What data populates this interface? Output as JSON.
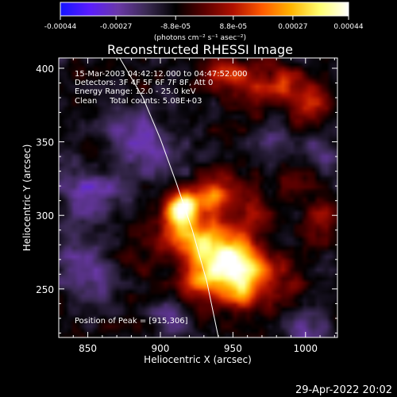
{
  "colorbar": {
    "min": -0.00044,
    "max": 0.00044,
    "tick_labels": [
      "-0.00044",
      "-0.00027",
      "-8.8e-05",
      "8.8e-05",
      "0.00027",
      "0.00044"
    ],
    "tick_values": [
      -0.00044,
      -0.00027,
      -8.8e-05,
      8.8e-05,
      0.00027,
      0.00044
    ],
    "unit_label": "(photons cm⁻² s⁻¹ asec⁻²)",
    "colors": [
      "#1414ff",
      "#5a1cff",
      "#6a38a8",
      "#3a2a52",
      "#000000",
      "#5a0000",
      "#b01000",
      "#ff5a00",
      "#ffb400",
      "#ffff70",
      "#ffffff"
    ]
  },
  "chart_data": {
    "type": "heatmap",
    "title": "Reconstructed RHESSI Image",
    "xlabel": "Heliocentric X (arcsec)",
    "ylabel": "Heliocentric Y (arcsec)",
    "xlim": [
      830,
      1022
    ],
    "ylim": [
      217,
      407
    ],
    "xticks": [
      850,
      900,
      950,
      1000
    ],
    "yticks": [
      250,
      300,
      350,
      400
    ],
    "annotations": [
      "15-Mar-2003 04:42:12.000 to 04:47:52.000",
      "Detectors: 3F 4F 5F 6F 7F 8F, Att 0",
      "Energy Range: 12.0 - 25.0 keV",
      "Clean     Total counts: 5.08E+03"
    ],
    "peak_text": "Position of Peak = [915,306]",
    "peak": {
      "x": 915,
      "y": 306
    },
    "sources": [
      {
        "x": 915,
        "y": 306,
        "sx": 8,
        "sy": 7,
        "amp": 0.00044
      },
      {
        "x": 912,
        "y": 292,
        "sx": 10,
        "sy": 12,
        "amp": 0.00024
      },
      {
        "x": 930,
        "y": 285,
        "sx": 15,
        "sy": 12,
        "amp": 0.00028
      },
      {
        "x": 945,
        "y": 270,
        "sx": 15,
        "sy": 11,
        "amp": 0.0003
      },
      {
        "x": 960,
        "y": 265,
        "sx": 14,
        "sy": 12,
        "amp": 0.00027
      },
      {
        "x": 955,
        "y": 248,
        "sx": 12,
        "sy": 10,
        "amp": 0.00024
      },
      {
        "x": 928,
        "y": 255,
        "sx": 12,
        "sy": 10,
        "amp": 0.00022
      },
      {
        "x": 962,
        "y": 300,
        "sx": 9,
        "sy": 8,
        "amp": 0.00015
      },
      {
        "x": 945,
        "y": 318,
        "sx": 11,
        "sy": 9,
        "amp": 0.00018
      },
      {
        "x": 935,
        "y": 312,
        "sx": 8,
        "sy": 6,
        "amp": 0.00021
      },
      {
        "x": 950,
        "y": 395,
        "sx": 18,
        "sy": 9,
        "amp": 0.00019
      },
      {
        "x": 985,
        "y": 385,
        "sx": 16,
        "sy": 10,
        "amp": 0.00017
      },
      {
        "x": 1005,
        "y": 372,
        "sx": 10,
        "sy": 9,
        "amp": 0.00012
      },
      {
        "x": 1012,
        "y": 300,
        "sx": 8,
        "sy": 10,
        "amp": 0.00012
      },
      {
        "x": 990,
        "y": 250,
        "sx": 8,
        "sy": 7,
        "amp": 0.00011
      },
      {
        "x": 880,
        "y": 265,
        "sx": 10,
        "sy": 8,
        "amp": 7e-05
      },
      {
        "x": 990,
        "y": 322,
        "sx": 10,
        "sy": 8,
        "amp": 8e-05
      },
      {
        "x": 855,
        "y": 315,
        "sx": 16,
        "sy": 12,
        "amp": -0.00017
      },
      {
        "x": 850,
        "y": 265,
        "sx": 14,
        "sy": 14,
        "amp": -0.00016
      },
      {
        "x": 895,
        "y": 345,
        "sx": 14,
        "sy": 12,
        "amp": -0.00015
      },
      {
        "x": 870,
        "y": 360,
        "sx": 14,
        "sy": 10,
        "amp": -0.00012
      },
      {
        "x": 1000,
        "y": 225,
        "sx": 10,
        "sy": 8,
        "amp": -0.00015
      },
      {
        "x": 1010,
        "y": 340,
        "sx": 8,
        "sy": 8,
        "amp": -0.0001
      },
      {
        "x": 978,
        "y": 352,
        "sx": 9,
        "sy": 6,
        "amp": -9e-05
      },
      {
        "x": 905,
        "y": 230,
        "sx": 10,
        "sy": 8,
        "amp": -0.00012
      }
    ],
    "limb": [
      [
        872,
        407
      ],
      [
        888,
        380
      ],
      [
        900,
        352
      ],
      [
        911,
        322
      ],
      [
        922,
        290
      ],
      [
        932,
        255
      ],
      [
        940,
        217
      ]
    ]
  },
  "footer": {
    "date": "29-Apr-2022 20:02"
  }
}
